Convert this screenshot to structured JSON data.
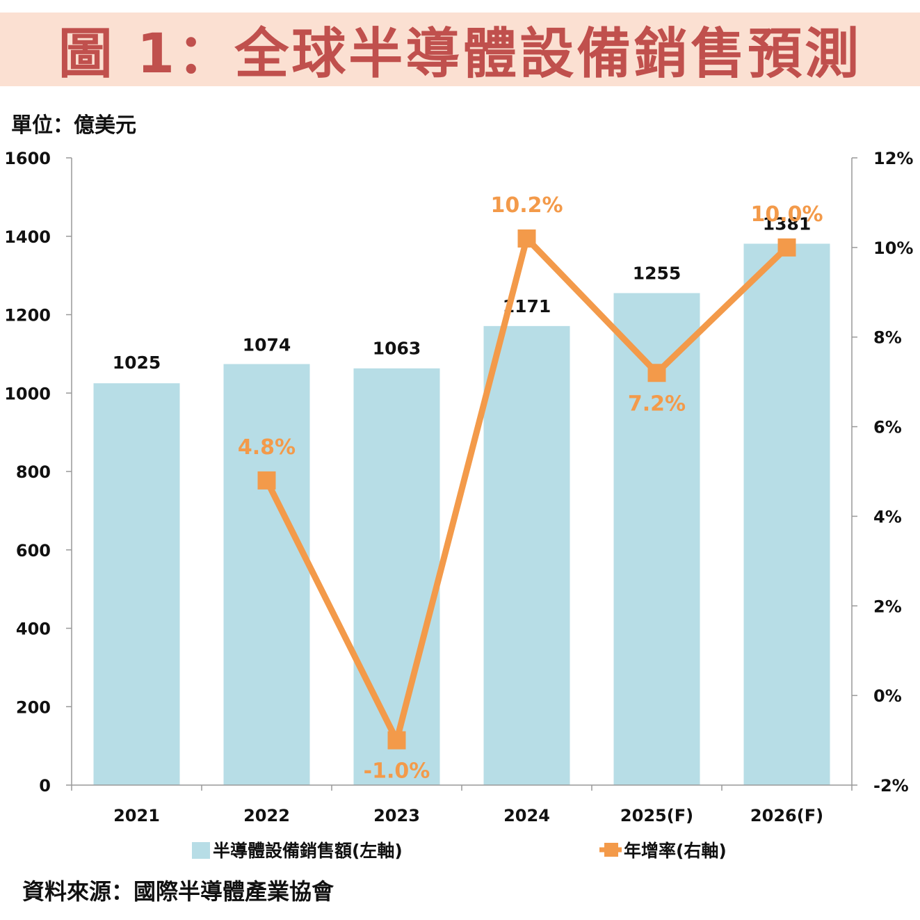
{
  "title": "圖 1：全球半導體設備銷售預測",
  "unit_label": "單位：億美元",
  "source_label": "資料來源：國際半導體產業協會",
  "colors": {
    "bar": "#b7dde6",
    "line": "#f39a4a",
    "title": "#c0504d",
    "title_bg": "#fbe0d2",
    "axis": "#999999"
  },
  "chart_data": {
    "type": "bar+line",
    "categories": [
      "2021",
      "2022",
      "2023",
      "2024",
      "2025(F)",
      "2026(F)"
    ],
    "series": [
      {
        "name": "半導體設備銷售額(左軸)",
        "type": "bar",
        "axis": "left",
        "values": [
          1025,
          1074,
          1063,
          1171,
          1255,
          1381
        ],
        "labels": [
          "1025",
          "1074",
          "1063",
          "1171",
          "1255",
          "1381"
        ]
      },
      {
        "name": "年增率(右軸)",
        "type": "line",
        "axis": "right",
        "values": [
          null,
          4.8,
          -1.0,
          10.2,
          7.2,
          10.0
        ],
        "labels": [
          null,
          "4.8%",
          "-1.0%",
          "10.2%",
          "7.2%",
          "10.0%"
        ]
      }
    ],
    "left_axis": {
      "min": 0,
      "max": 1600,
      "ticks": [
        "0",
        "200",
        "400",
        "600",
        "800",
        "1000",
        "1200",
        "1400",
        "1600"
      ]
    },
    "right_axis": {
      "min": -2,
      "max": 12,
      "ticks": [
        "-2%",
        "0%",
        "2%",
        "4%",
        "6%",
        "8%",
        "10%",
        "12%"
      ]
    },
    "legend_position": "bottom"
  }
}
